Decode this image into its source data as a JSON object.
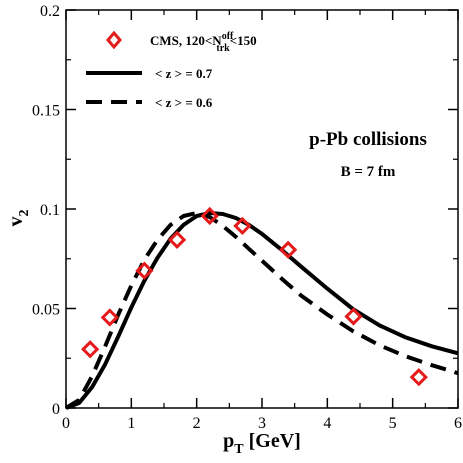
{
  "chart_data": {
    "type": "scatter",
    "xlabel": {
      "main": "p",
      "sub": "T",
      "rest": " [GeV]"
    },
    "ylabel": {
      "main": "v",
      "sub": "2"
    },
    "xlim": [
      0,
      6
    ],
    "ylim": [
      0,
      0.2
    ],
    "x_ticks": [
      "0",
      "1",
      "2",
      "3",
      "4",
      "5",
      "6"
    ],
    "y_ticks": [
      "0",
      "0.05",
      "0.1",
      "0.15",
      "0.2"
    ],
    "annotations": {
      "system": "p-Pb collisions",
      "impact": "B = 7 fm"
    },
    "legend": {
      "position": "top-left",
      "cms": {
        "main": "CMS, 120<N",
        "sup": "off",
        "sub": "trk",
        "rest": "<150"
      },
      "z07": "< z > = 0.7",
      "z06": "< z > = 0.6"
    },
    "series": [
      {
        "name": "CMS, 120<N_trk^off<150",
        "kind": "markers",
        "marker": "diamond",
        "color": "#e41a1c",
        "x": [
          0.37,
          0.67,
          1.2,
          1.7,
          2.2,
          2.7,
          3.4,
          4.4,
          5.4
        ],
        "y": [
          0.0295,
          0.0455,
          0.069,
          0.0845,
          0.0965,
          0.0915,
          0.0795,
          0.046,
          0.0155
        ]
      },
      {
        "name": "< z > = 0.7",
        "kind": "line",
        "style": "solid",
        "color": "#000000",
        "x": [
          0,
          0.2,
          0.4,
          0.6,
          0.8,
          1.0,
          1.2,
          1.4,
          1.6,
          1.8,
          2.0,
          2.2,
          2.4,
          2.6,
          2.8,
          3.0,
          3.3,
          3.6,
          4.0,
          4.4,
          4.8,
          5.2,
          5.6,
          6.0
        ],
        "y": [
          0.0,
          0.0025,
          0.0105,
          0.022,
          0.036,
          0.0505,
          0.064,
          0.0755,
          0.085,
          0.092,
          0.0965,
          0.098,
          0.0975,
          0.0955,
          0.092,
          0.0875,
          0.0795,
          0.071,
          0.06,
          0.0495,
          0.0415,
          0.0355,
          0.031,
          0.0275
        ]
      },
      {
        "name": "< z > = 0.6",
        "kind": "line",
        "style": "dashed",
        "color": "#000000",
        "x": [
          0,
          0.2,
          0.4,
          0.6,
          0.8,
          1.0,
          1.2,
          1.4,
          1.6,
          1.8,
          2.0,
          2.2,
          2.4,
          2.6,
          2.8,
          3.0,
          3.3,
          3.6,
          4.0,
          4.4,
          4.8,
          5.2,
          5.6,
          6.0
        ],
        "y": [
          0.0,
          0.004,
          0.016,
          0.031,
          0.047,
          0.0615,
          0.0745,
          0.0845,
          0.092,
          0.0965,
          0.098,
          0.096,
          0.0915,
          0.086,
          0.08,
          0.074,
          0.065,
          0.0565,
          0.047,
          0.0385,
          0.0315,
          0.026,
          0.0215,
          0.0175
        ]
      }
    ]
  }
}
